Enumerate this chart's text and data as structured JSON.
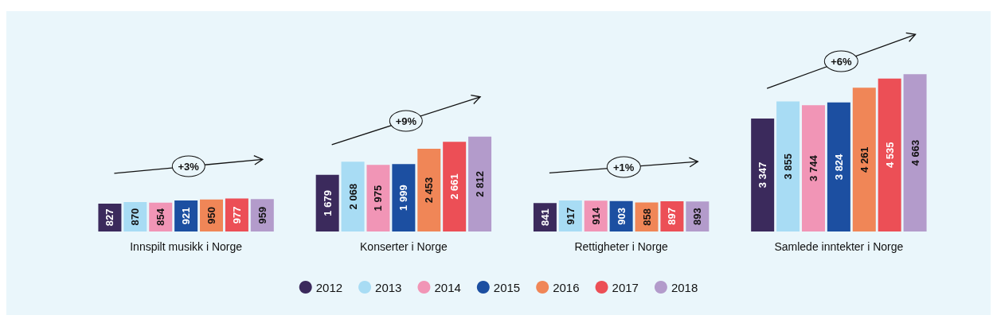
{
  "chart_data": {
    "type": "bar",
    "categories": [
      "Innspilt musikk i Norge",
      "Konserter i Norge",
      "Rettigheter i Norge",
      "Samlede inntekter i Norge"
    ],
    "series": [
      {
        "name": "2012",
        "color": "#3b2a5c",
        "values": [
          827,
          1679,
          841,
          3347
        ],
        "value_labels": [
          "827",
          "1 679",
          "841",
          "3 347"
        ]
      },
      {
        "name": "2013",
        "color": "#a8dcf4",
        "values": [
          870,
          2068,
          917,
          3855
        ],
        "value_labels": [
          "870",
          "2 068",
          "917",
          "3 855"
        ]
      },
      {
        "name": "2014",
        "color": "#f195b6",
        "values": [
          854,
          1975,
          914,
          3744
        ],
        "value_labels": [
          "854",
          "1 975",
          "914",
          "3 744"
        ]
      },
      {
        "name": "2015",
        "color": "#1c4fa1",
        "values": [
          921,
          1999,
          903,
          3824
        ],
        "value_labels": [
          "921",
          "1 999",
          "903",
          "3 824"
        ]
      },
      {
        "name": "2016",
        "color": "#f08657",
        "values": [
          950,
          2453,
          858,
          4261
        ],
        "value_labels": [
          "950",
          "2 453",
          "858",
          "4 261"
        ]
      },
      {
        "name": "2017",
        "color": "#ec4f56",
        "values": [
          977,
          2661,
          897,
          4535
        ],
        "value_labels": [
          "977",
          "2 661",
          "897",
          "4 535"
        ]
      },
      {
        "name": "2018",
        "color": "#b39bcb",
        "values": [
          959,
          2812,
          893,
          4663
        ],
        "value_labels": [
          "959",
          "2 812",
          "893",
          "4 663"
        ]
      }
    ],
    "legend": "bottom",
    "grid": false,
    "annotations": [
      "+3%",
      "+9%",
      "+1%",
      "+6%"
    ]
  }
}
